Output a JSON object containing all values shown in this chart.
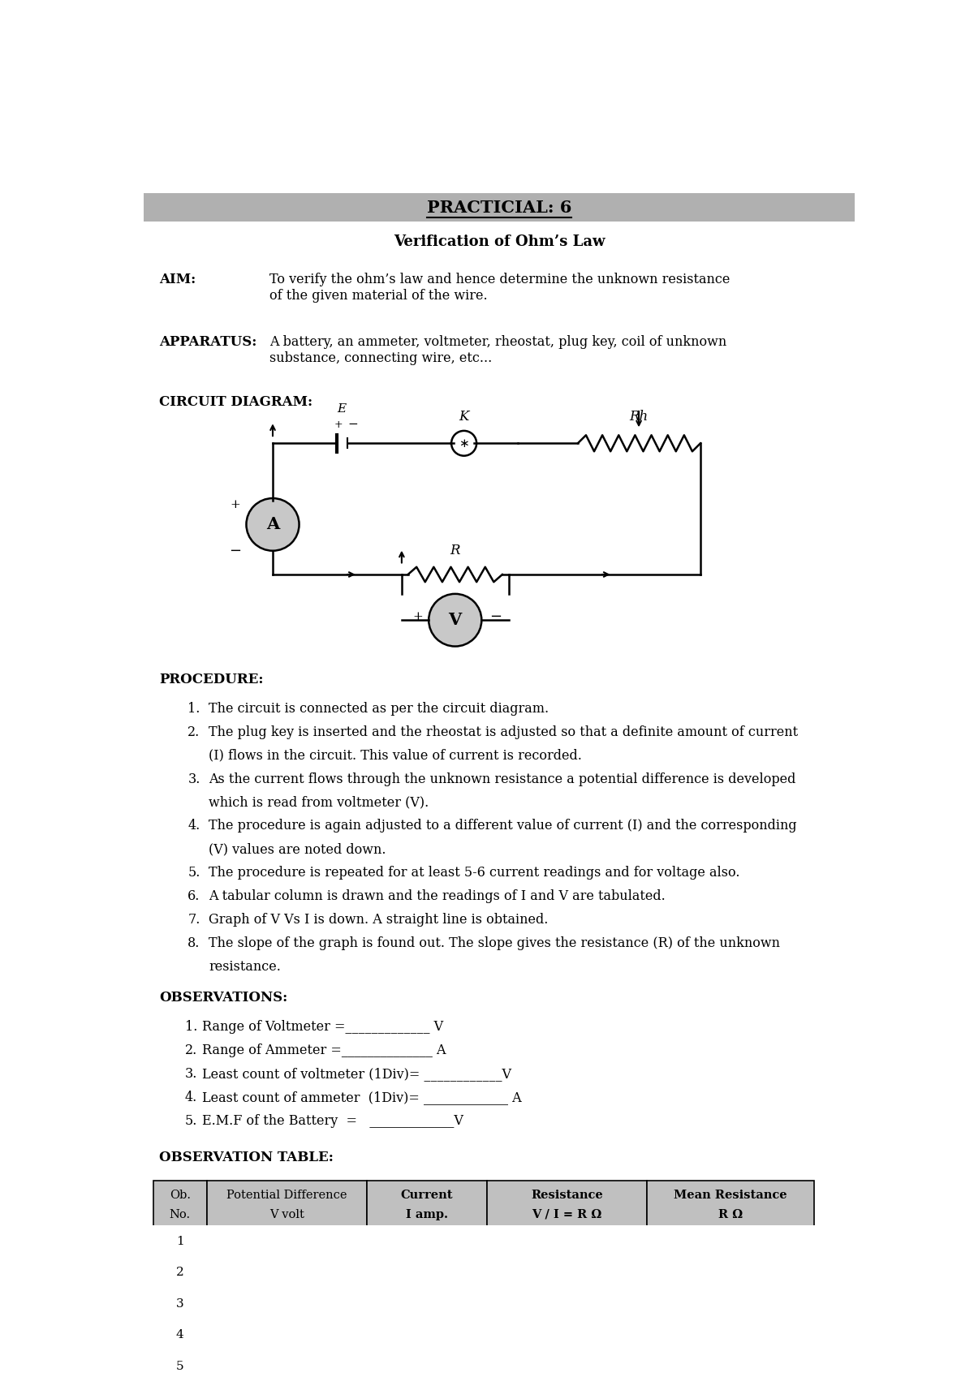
{
  "title_bar_text": "PRACTICIAL: 6",
  "title_bar_color": "#b0b0b0",
  "subtitle": "Verification of Ohm’s Law",
  "aim_label": "AIM:",
  "aim_text": "To verify the ohm’s law and hence determine the unknown resistance\nof the given material of the wire.",
  "apparatus_label": "APPARATUS:",
  "apparatus_text": "A battery, an ammeter, voltmeter, rheostat, plug key, coil of unknown\nsubstance, connecting wire, etc...",
  "circuit_label": "CIRCUIT DIAGRAM:",
  "procedure_label": "PROCEDURE:",
  "procedure_items": [
    "The circuit is connected as per the circuit diagram.",
    "The plug key is inserted and the rheostat is adjusted so that a definite amount of current\n(I) flows in the circuit. This value of current is recorded.",
    "As the current flows through the unknown resistance a potential difference is developed\nwhich is read from voltmeter (V).",
    "The procedure is again adjusted to a different value of current (I) and the corresponding\n(V) values are noted down.",
    "The procedure is repeated for at least 5-6 current readings and for voltage also.",
    "A tabular column is drawn and the readings of I and V are tabulated.",
    "Graph of V Vs I is down. A straight line is obtained.",
    "The slope of the graph is found out. The slope gives the resistance (R) of the unknown\nresistance."
  ],
  "observations_label": "OBSERVATIONS:",
  "observations_items": [
    "Range of Voltmeter =_____________ V",
    "Range of Ammeter =______________ A",
    "Least count of voltmeter (1Div)= ____________V",
    "Least count of ammeter  (1Div)= _____________ A",
    "E.M.F of the Battery  =   _____________V"
  ],
  "obs_table_label": "OBSERVATION TABLE:",
  "table_headers_row1": [
    "Ob.",
    "Potential Difference",
    "Current",
    "Resistance",
    "Mean Resistance"
  ],
  "table_headers_row2": [
    "No.",
    "V volt",
    "I amp.",
    "V / I = R Ω",
    "R Ω"
  ],
  "table_rows": 5,
  "bg_color": "#ffffff",
  "text_color": "#000000",
  "table_header_bg": "#c0c0c0"
}
